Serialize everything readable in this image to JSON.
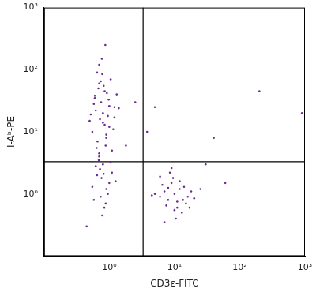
{
  "chart_data": {
    "type": "scatter",
    "x_label": "CD3ε-FITC",
    "y_label": "I-Aᵇ-PE",
    "log": true,
    "grid": false,
    "color": "#6b2c91",
    "marker": "dot",
    "xlim": [
      0.1,
      1000
    ],
    "ylim": [
      0.1,
      1000
    ],
    "xticks": [
      {
        "value": 1,
        "label": "10⁰"
      },
      {
        "value": 10,
        "label": "10¹"
      },
      {
        "value": 100,
        "label": "10²"
      },
      {
        "value": 1000,
        "label": "10³"
      }
    ],
    "yticks": [
      {
        "value": 1,
        "label": "10⁰"
      },
      {
        "value": 10,
        "label": "10¹"
      },
      {
        "value": 100,
        "label": "10²"
      },
      {
        "value": 1000,
        "label": "10³"
      }
    ],
    "gates": {
      "x": 3.3,
      "y": 3.3
    },
    "x": [
      0.8,
      0.6,
      1.0,
      0.7,
      0.9,
      1.2,
      0.5,
      0.85,
      0.65,
      1.1,
      0.75,
      0.95,
      0.55,
      1.3,
      0.7,
      0.88,
      0.62,
      1.05,
      0.8,
      0.68,
      0.9,
      0.58,
      0.72,
      1.15,
      0.82,
      0.66,
      0.98,
      0.77,
      0.52,
      1.4,
      0.7,
      0.85,
      0.6,
      1.0,
      0.78,
      0.92,
      0.64,
      1.2,
      0.74,
      0.87,
      0.8,
      0.65,
      1.0,
      0.72,
      0.9,
      0.58,
      1.1,
      0.76,
      0.84,
      0.69,
      0.95,
      0.62,
      0.78,
      1.25,
      0.7,
      0.88,
      0.55,
      1.05,
      0.82,
      0.74,
      10,
      8,
      12,
      6,
      15,
      9,
      11,
      7,
      14,
      20,
      5,
      9.5,
      13,
      7.5,
      18,
      10.5,
      6.5,
      16,
      8.5,
      12,
      11,
      4.5,
      9,
      25,
      7,
      13.5,
      10,
      8,
      17,
      6,
      200,
      900,
      40,
      30,
      3.8,
      60,
      2.5,
      1.8,
      0.45,
      5
    ],
    "values": [
      20,
      35,
      12,
      60,
      8,
      25,
      15,
      45,
      90,
      5,
      30,
      18,
      10,
      40,
      120,
      6,
      22,
      70,
      14,
      50,
      9,
      28,
      16,
      11,
      55,
      7,
      33,
      150,
      19,
      24,
      4,
      13,
      38,
      26,
      85,
      42,
      5.5,
      17,
      65,
      250,
      3,
      2,
      1.5,
      2.5,
      1.2,
      0.8,
      2.2,
      1.8,
      0.6,
      3.5,
      1,
      2.8,
      0.45,
      1.6,
      4.5,
      0.7,
      1.3,
      3.2,
      2.1,
      0.9,
      1,
      0.8,
      1.2,
      0.9,
      0.7,
      1.5,
      0.6,
      1.1,
      1.3,
      0.85,
      1,
      1.8,
      0.5,
      0.65,
      1.1,
      0.4,
      1.4,
      0.9,
      2.2,
      1.6,
      0.75,
      0.95,
      2.6,
      1.2,
      0.35,
      0.8,
      0.55,
      1.25,
      0.6,
      1.9,
      45,
      20,
      8,
      3,
      10,
      1.5,
      30,
      6,
      0.3,
      25
    ]
  }
}
